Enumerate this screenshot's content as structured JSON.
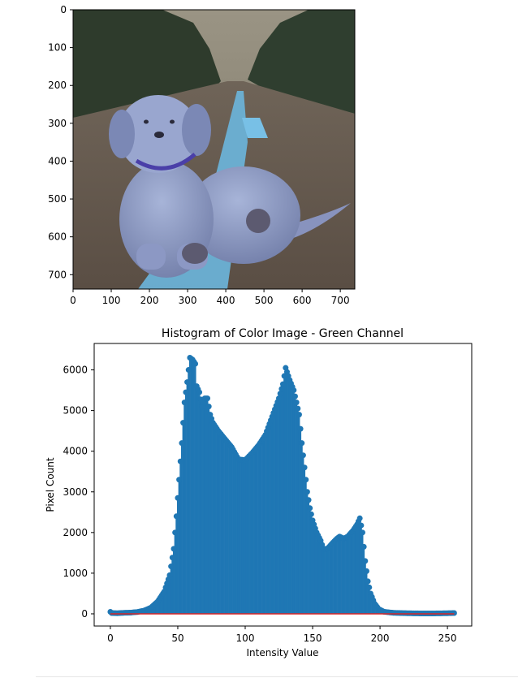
{
  "chart_data": [
    {
      "type": "image",
      "subject": "golden retriever puppy sitting on a road, displayed with swapped color channels (bluish tint)",
      "xticks": [
        "0",
        "100",
        "200",
        "300",
        "400",
        "500",
        "600",
        "700"
      ],
      "yticks": [
        "0",
        "100",
        "200",
        "300",
        "400",
        "500",
        "600",
        "700"
      ],
      "xlim": [
        0,
        738
      ],
      "ylim": [
        738,
        0
      ]
    },
    {
      "type": "stem",
      "title": "Histogram of Color Image - Green Channel",
      "xlabel": "Intensity Value",
      "ylabel": "Pixel Count",
      "xlim": [
        -12,
        268
      ],
      "ylim": [
        -300,
        6650
      ],
      "xticks": [
        "0",
        "50",
        "100",
        "150",
        "200",
        "250"
      ],
      "yticks": [
        "0",
        "1000",
        "2000",
        "3000",
        "4000",
        "5000",
        "6000"
      ],
      "marker_color": "#1f77b4",
      "baseline_color": "#d62728",
      "anchors": [
        [
          0,
          50
        ],
        [
          1,
          20
        ],
        [
          5,
          15
        ],
        [
          10,
          25
        ],
        [
          15,
          30
        ],
        [
          20,
          45
        ],
        [
          25,
          80
        ],
        [
          30,
          150
        ],
        [
          35,
          300
        ],
        [
          40,
          550
        ],
        [
          44,
          950
        ],
        [
          47,
          1600
        ],
        [
          49,
          2400
        ],
        [
          51,
          3300
        ],
        [
          53,
          4200
        ],
        [
          55,
          5200
        ],
        [
          57,
          5700
        ],
        [
          59,
          6300
        ],
        [
          61,
          6250
        ],
        [
          63,
          6150
        ],
        [
          64,
          5600
        ],
        [
          66,
          5450
        ],
        [
          68,
          5100
        ],
        [
          70,
          5300
        ],
        [
          72,
          5300
        ],
        [
          74,
          4900
        ],
        [
          76,
          4700
        ],
        [
          80,
          4500
        ],
        [
          85,
          4300
        ],
        [
          90,
          4100
        ],
        [
          95,
          3800
        ],
        [
          100,
          3780
        ],
        [
          105,
          3950
        ],
        [
          110,
          4150
        ],
        [
          115,
          4400
        ],
        [
          120,
          4850
        ],
        [
          125,
          5300
        ],
        [
          128,
          5650
        ],
        [
          130,
          6050
        ],
        [
          133,
          5750
        ],
        [
          136,
          5500
        ],
        [
          138,
          5200
        ],
        [
          140,
          4900
        ],
        [
          142,
          4200
        ],
        [
          144,
          3600
        ],
        [
          146,
          3000
        ],
        [
          148,
          2600
        ],
        [
          150,
          2300
        ],
        [
          153,
          2000
        ],
        [
          156,
          1800
        ],
        [
          158,
          1600
        ],
        [
          161,
          1600
        ],
        [
          165,
          1750
        ],
        [
          168,
          1850
        ],
        [
          170,
          1900
        ],
        [
          173,
          1850
        ],
        [
          176,
          1900
        ],
        [
          180,
          2050
        ],
        [
          183,
          2200
        ],
        [
          185,
          2350
        ],
        [
          187,
          2000
        ],
        [
          189,
          1300
        ],
        [
          191,
          800
        ],
        [
          193,
          500
        ],
        [
          196,
          250
        ],
        [
          199,
          120
        ],
        [
          203,
          50
        ],
        [
          210,
          25
        ],
        [
          220,
          15
        ],
        [
          230,
          10
        ],
        [
          240,
          10
        ],
        [
          250,
          15
        ],
        [
          255,
          20
        ]
      ]
    }
  ]
}
